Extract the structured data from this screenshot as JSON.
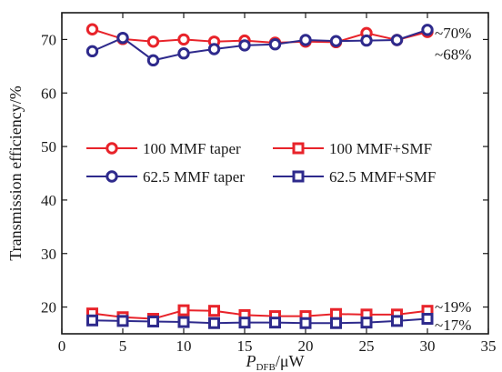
{
  "chart_data": {
    "type": "line",
    "xlabel_main": "P",
    "xlabel_sub": "DFB",
    "xlabel_unit": "/μW",
    "ylabel": "Transmission efficiency/%",
    "xlim": [
      0,
      35
    ],
    "ylim": [
      15,
      75
    ],
    "xticks": [
      0,
      5,
      10,
      15,
      20,
      25,
      30,
      35
    ],
    "yticks": [
      20,
      30,
      40,
      50,
      60,
      70
    ],
    "x": [
      2.5,
      5,
      7.5,
      10,
      12.5,
      15,
      17.5,
      20,
      22.5,
      25,
      27.5,
      30
    ],
    "series": [
      {
        "name": "100 MMF taper",
        "color": "#e8232a",
        "marker": "circle",
        "values": [
          71.9,
          70.1,
          69.6,
          70.0,
          69.6,
          69.8,
          69.4,
          69.6,
          69.5,
          71.2,
          69.9,
          71.4
        ]
      },
      {
        "name": "62.5 MMF taper",
        "color": "#2e2a8c",
        "marker": "circle",
        "values": [
          67.8,
          70.3,
          66.1,
          67.4,
          68.2,
          68.9,
          69.1,
          69.9,
          69.7,
          69.8,
          69.9,
          71.8
        ]
      },
      {
        "name": "100 MMF+SMF",
        "color": "#e8232a",
        "marker": "square",
        "values": [
          18.8,
          18.1,
          17.8,
          19.4,
          19.3,
          18.5,
          18.3,
          18.3,
          18.7,
          18.6,
          18.6,
          19.3
        ]
      },
      {
        "name": "62.5 MMF+SMF",
        "color": "#2e2a8c",
        "marker": "square",
        "values": [
          17.5,
          17.4,
          17.3,
          17.2,
          17.0,
          17.1,
          17.1,
          17.0,
          17.0,
          17.1,
          17.4,
          17.8
        ]
      }
    ],
    "legend_order": [
      0,
      2,
      1,
      3
    ],
    "annotations": [
      {
        "text": "~70%",
        "y": 71.3
      },
      {
        "text": "~68%",
        "y": 67.3
      },
      {
        "text": "~19%",
        "y": 20.1
      },
      {
        "text": "~17%",
        "y": 16.7
      }
    ],
    "grid": false,
    "legend_position": "center"
  }
}
